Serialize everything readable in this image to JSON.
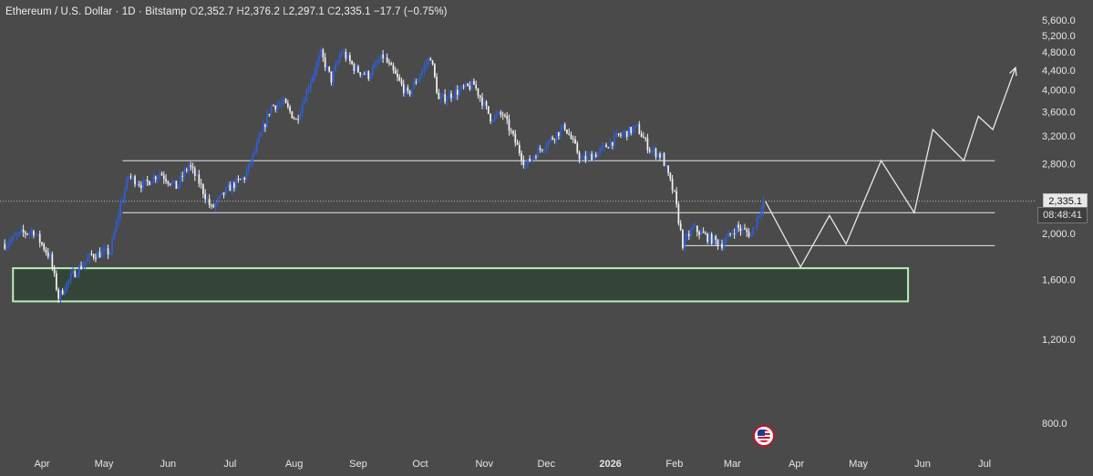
{
  "header": {
    "symbol": "Ethereum / U.S. Dollar",
    "interval": "1D",
    "exchange": "Bitstamp",
    "o_label": "O",
    "open": "2,352.7",
    "h_label": "H",
    "high": "2,376.2",
    "l_label": "L",
    "low": "2,297.1",
    "c_label": "C",
    "close": "2,335.1",
    "change": "−17.7 (−0.75%)",
    "sep": "·"
  },
  "price_tag": {
    "price": "2,335.1",
    "countdown": "08:48:41"
  },
  "colors": {
    "background": "#4a4a4a",
    "up_candle": "#2f5fd8",
    "down_candle": "#f2f2f2",
    "zone_fill": "#354439",
    "zone_border": "#b9f0b9",
    "lines": "#e8e8e8"
  },
  "icons": {
    "event_marker": "us-flag-icon"
  },
  "chart_data": {
    "type": "candlestick",
    "scale": "log",
    "y_ticks": [
      "5,600.0",
      "5,200.0",
      "4,800.0",
      "4,400.0",
      "4,000.0",
      "3,600.0",
      "3,200.0",
      "2,800.0",
      "2,000.0",
      "1,600.0",
      "1,200.0",
      "800.0"
    ],
    "y_tick_values": [
      5600,
      5200,
      4800,
      4400,
      4000,
      3600,
      3200,
      2800,
      2000,
      1600,
      1200,
      800
    ],
    "x_ticks": [
      "Apr",
      "May",
      "Jun",
      "Jul",
      "Aug",
      "Sep",
      "Oct",
      "Nov",
      "Dec",
      "2026",
      "Feb",
      "Mar",
      "Apr",
      "May",
      "Jun",
      "Jul"
    ],
    "x_tick_dates": [
      "2025-04-01",
      "2025-05-01",
      "2025-06-01",
      "2025-07-01",
      "2025-08-01",
      "2025-09-01",
      "2025-10-01",
      "2025-11-01",
      "2025-12-01",
      "2026-01-01",
      "2026-02-01",
      "2026-03-01",
      "2026-04-01",
      "2026-05-01",
      "2026-06-01",
      "2026-07-01"
    ],
    "bold_tick": "2026",
    "price_path": [
      [
        "2025-03-14",
        1900
      ],
      [
        "2025-03-22",
        2000
      ],
      [
        "2025-03-28",
        2020
      ],
      [
        "2025-04-05",
        1780
      ],
      [
        "2025-04-09",
        1470
      ],
      [
        "2025-04-15",
        1620
      ],
      [
        "2025-04-25",
        1800
      ],
      [
        "2025-05-04",
        1830
      ],
      [
        "2025-05-09",
        2300
      ],
      [
        "2025-05-13",
        2640
      ],
      [
        "2025-05-20",
        2520
      ],
      [
        "2025-05-28",
        2680
      ],
      [
        "2025-06-05",
        2500
      ],
      [
        "2025-06-11",
        2780
      ],
      [
        "2025-06-16",
        2560
      ],
      [
        "2025-06-22",
        2250
      ],
      [
        "2025-06-30",
        2480
      ],
      [
        "2025-07-08",
        2620
      ],
      [
        "2025-07-14",
        3050
      ],
      [
        "2025-07-21",
        3700
      ],
      [
        "2025-07-27",
        3750
      ],
      [
        "2025-08-02",
        3450
      ],
      [
        "2025-08-09",
        4200
      ],
      [
        "2025-08-14",
        4750
      ],
      [
        "2025-08-19",
        4200
      ],
      [
        "2025-08-24",
        4820
      ],
      [
        "2025-08-31",
        4400
      ],
      [
        "2025-09-06",
        4290
      ],
      [
        "2025-09-13",
        4700
      ],
      [
        "2025-09-25",
        3900
      ],
      [
        "2025-10-06",
        4700
      ],
      [
        "2025-10-10",
        3800
      ],
      [
        "2025-10-18",
        3950
      ],
      [
        "2025-10-27",
        4100
      ],
      [
        "2025-11-04",
        3500
      ],
      [
        "2025-11-10",
        3550
      ],
      [
        "2025-11-21",
        2780
      ],
      [
        "2025-11-26",
        2950
      ],
      [
        "2025-12-03",
        3150
      ],
      [
        "2025-12-10",
        3350
      ],
      [
        "2025-12-18",
        2850
      ],
      [
        "2025-12-26",
        2950
      ],
      [
        "2026-01-05",
        3200
      ],
      [
        "2026-01-14",
        3330
      ],
      [
        "2026-01-20",
        3000
      ],
      [
        "2026-01-26",
        2900
      ],
      [
        "2026-02-01",
        2400
      ],
      [
        "2026-02-05",
        1900
      ],
      [
        "2026-02-10",
        2050
      ],
      [
        "2026-02-18",
        1950
      ],
      [
        "2026-02-24",
        1900
      ],
      [
        "2026-03-03",
        2060
      ],
      [
        "2026-03-10",
        1990
      ],
      [
        "2026-03-16",
        2335
      ]
    ],
    "horizontal_levels": [
      {
        "value": 2840,
        "from": "2025-05-10",
        "to": "2026-07-06"
      },
      {
        "value": 2210,
        "from": "2025-05-10",
        "to": "2026-07-06"
      },
      {
        "value": 1885,
        "from": "2026-02-05",
        "to": "2026-07-06"
      }
    ],
    "last_price_line": 2335.1,
    "support_zone": {
      "low": 1440,
      "high": 1690,
      "from": "2025-03-18",
      "to": "2026-05-25"
    },
    "projection_path": [
      [
        "2026-03-17",
        2335
      ],
      [
        "2026-04-03",
        1700
      ],
      [
        "2026-04-17",
        2180
      ],
      [
        "2026-04-25",
        1900
      ],
      [
        "2026-05-12",
        2840
      ],
      [
        "2026-05-28",
        2210
      ],
      [
        "2026-06-06",
        3300
      ],
      [
        "2026-06-21",
        2840
      ],
      [
        "2026-06-28",
        3520
      ],
      [
        "2026-07-05",
        3300
      ],
      [
        "2026-07-16",
        4450
      ]
    ],
    "event_marker_date": "2026-03-16"
  }
}
